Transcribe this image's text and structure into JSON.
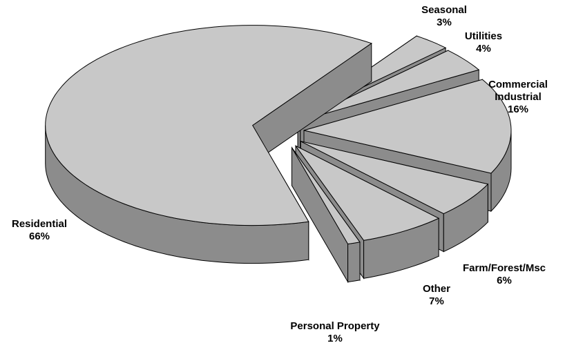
{
  "chart_data": {
    "type": "pie3d",
    "categories": [
      "Seasonal",
      "Utilities",
      "Commercial Industrial",
      "Farm/Forest/Msc",
      "Other",
      "Personal Property",
      "Residential"
    ],
    "values": [
      3,
      4,
      16,
      6,
      7,
      1,
      66
    ],
    "value_labels": [
      "3%",
      "4%",
      "16%",
      "6%",
      "7%",
      "1%",
      "66%"
    ],
    "color": "#c8c8c8",
    "side_color": "#8c8c8c"
  }
}
